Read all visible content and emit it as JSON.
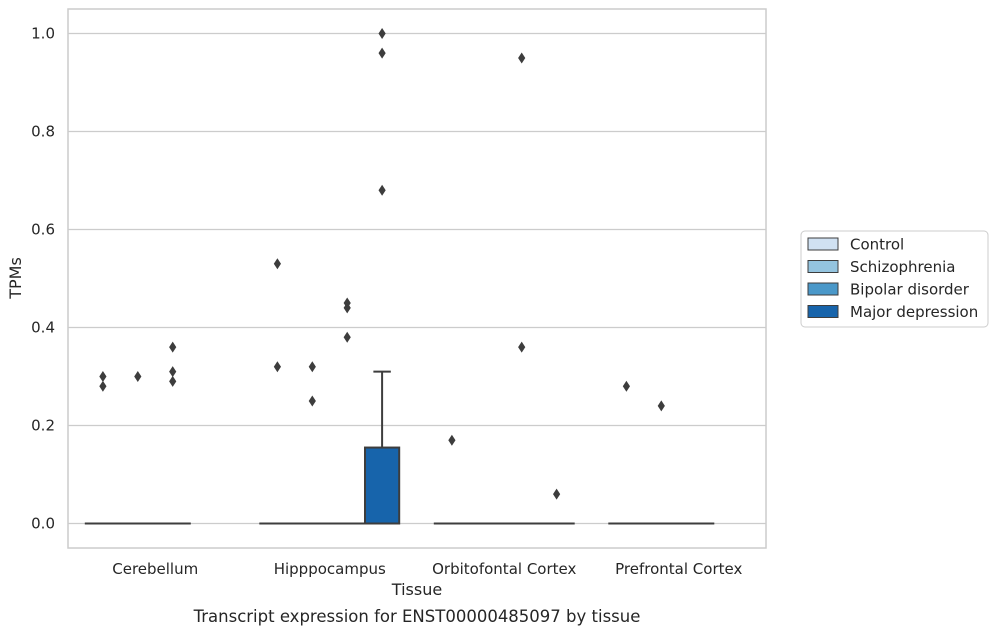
{
  "chart_data": {
    "type": "box",
    "caption": "Transcript expression for ENST00000485097 by tissue",
    "xlabel": "Tissue",
    "ylabel": "TPMs",
    "ylim": [
      -0.05,
      1.05
    ],
    "yticks": [
      0.0,
      0.2,
      0.4,
      0.6,
      0.8,
      1.0
    ],
    "ytick_labels": [
      "0.0",
      "0.2",
      "0.4",
      "0.6",
      "0.8",
      "1.0"
    ],
    "grid": "horizontal",
    "legend_position": "right",
    "categories": [
      "Cerebellum",
      "Hipppocampus",
      "Orbitofontal Cortex",
      "Prefrontal Cortex"
    ],
    "series": [
      {
        "name": "Control",
        "color": "#d0e1f2",
        "boxes": [
          {
            "q1": 0,
            "median": 0,
            "q3": 0,
            "whisker_low": 0,
            "whisker_high": 0,
            "outliers": [
              0.28,
              0.3
            ]
          },
          {
            "q1": 0,
            "median": 0,
            "q3": 0,
            "whisker_low": 0,
            "whisker_high": 0,
            "outliers": [
              0.32,
              0.53
            ]
          },
          {
            "q1": 0,
            "median": 0,
            "q3": 0,
            "whisker_low": 0,
            "whisker_high": 0,
            "outliers": [
              0.17
            ]
          },
          {
            "q1": 0,
            "median": 0,
            "q3": 0,
            "whisker_low": 0,
            "whisker_high": 0,
            "outliers": [
              0.28
            ]
          }
        ]
      },
      {
        "name": "Schizophrenia",
        "color": "#94c4df",
        "boxes": [
          {
            "q1": 0,
            "median": 0,
            "q3": 0,
            "whisker_low": 0,
            "whisker_high": 0,
            "outliers": [
              0.3
            ]
          },
          {
            "q1": 0,
            "median": 0,
            "q3": 0,
            "whisker_low": 0,
            "whisker_high": 0,
            "outliers": [
              0.25,
              0.32
            ]
          },
          {
            "q1": 0,
            "median": 0,
            "q3": 0,
            "whisker_low": 0,
            "whisker_high": 0,
            "outliers": []
          },
          {
            "q1": 0,
            "median": 0,
            "q3": 0,
            "whisker_low": 0,
            "whisker_high": 0,
            "outliers": [
              0.24
            ]
          }
        ]
      },
      {
        "name": "Bipolar disorder",
        "color": "#4a98c9",
        "boxes": [
          {
            "q1": 0,
            "median": 0,
            "q3": 0,
            "whisker_low": 0,
            "whisker_high": 0,
            "outliers": [
              0.29,
              0.31,
              0.36
            ]
          },
          {
            "q1": 0,
            "median": 0,
            "q3": 0,
            "whisker_low": 0,
            "whisker_high": 0,
            "outliers": [
              0.38,
              0.44,
              0.45
            ]
          },
          {
            "q1": 0,
            "median": 0,
            "q3": 0,
            "whisker_low": 0,
            "whisker_high": 0,
            "outliers": [
              0.36,
              0.95
            ]
          },
          {
            "q1": 0,
            "median": 0,
            "q3": 0,
            "whisker_low": 0,
            "whisker_high": 0,
            "outliers": []
          }
        ]
      },
      {
        "name": "Major depression",
        "color": "#1764ab",
        "boxes": [
          null,
          {
            "q1": 0,
            "median": 0,
            "q3": 0.155,
            "whisker_low": 0,
            "whisker_high": 0.31,
            "outliers": [
              0.68,
              0.96,
              1.0
            ]
          },
          {
            "q1": 0,
            "median": 0,
            "q3": 0,
            "whisker_low": 0,
            "whisker_high": 0,
            "outliers": [
              0.06
            ]
          },
          null
        ]
      }
    ]
  }
}
